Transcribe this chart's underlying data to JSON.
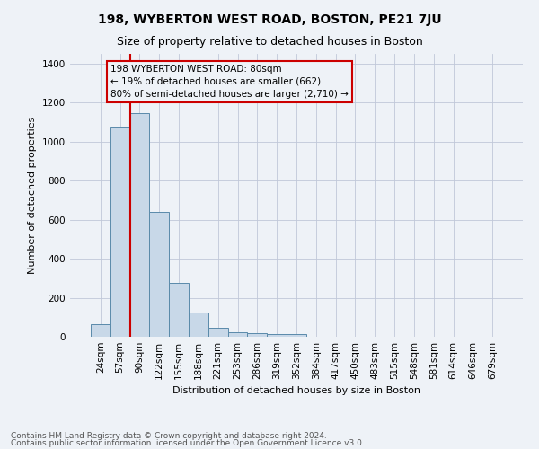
{
  "title": "198, WYBERTON WEST ROAD, BOSTON, PE21 7JU",
  "subtitle": "Size of property relative to detached houses in Boston",
  "xlabel": "Distribution of detached houses by size in Boston",
  "ylabel": "Number of detached properties",
  "footnote1": "Contains HM Land Registry data © Crown copyright and database right 2024.",
  "footnote2": "Contains public sector information licensed under the Open Government Licence v3.0.",
  "annotation_line1": "198 WYBERTON WEST ROAD: 80sqm",
  "annotation_line2": "← 19% of detached houses are smaller (662)",
  "annotation_line3": "80% of semi-detached houses are larger (2,710) →",
  "bin_labels": [
    "24sqm",
    "57sqm",
    "90sqm",
    "122sqm",
    "155sqm",
    "188sqm",
    "221sqm",
    "253sqm",
    "286sqm",
    "319sqm",
    "352sqm",
    "384sqm",
    "417sqm",
    "450sqm",
    "483sqm",
    "515sqm",
    "548sqm",
    "581sqm",
    "614sqm",
    "646sqm",
    "679sqm"
  ],
  "bin_values": [
    65,
    1075,
    1145,
    640,
    275,
    125,
    45,
    25,
    20,
    15,
    15,
    0,
    0,
    0,
    0,
    0,
    0,
    0,
    0,
    0,
    0
  ],
  "bar_color": "#c8d8e8",
  "bar_edge_color": "#5a8aaa",
  "vline_color": "#cc0000",
  "annotation_box_color": "#cc0000",
  "ylim": [
    0,
    1450
  ],
  "yticks": [
    0,
    200,
    400,
    600,
    800,
    1000,
    1200,
    1400
  ],
  "background_color": "#eef2f7",
  "grid_color": "#c0c8d8",
  "title_fontsize": 10,
  "subtitle_fontsize": 9,
  "ylabel_fontsize": 8,
  "xlabel_fontsize": 8,
  "tick_fontsize": 7.5,
  "footnote_fontsize": 6.5
}
